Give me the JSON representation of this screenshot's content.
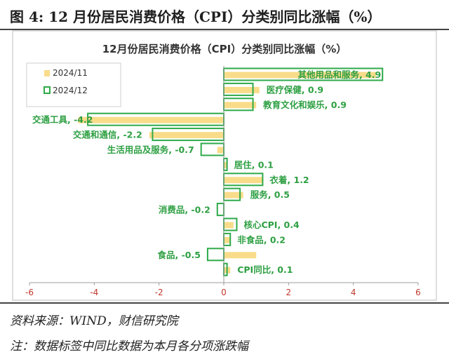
{
  "figure_title": "图 4: 12 月份居民消费价格（CPI）分类别同比涨幅（%）",
  "source_note": "资料来源：WIND，财信研究院",
  "label_note": "注：数据标签中同比数据为本月各分项涨跌幅",
  "colors": {
    "series_2024_11": "#f9dc8a",
    "series_2024_12": "#2eaa4a",
    "label_text": "#2ea043",
    "tick_text": "#c0392b"
  },
  "chart_data": {
    "type": "bar",
    "orientation": "horizontal",
    "title": "12月份居民消费价格（CPI）分类别同比涨幅（%）",
    "categories": [
      "其他用品和服务",
      "医疗保健",
      "教育文化和娱乐",
      "交通工具",
      "交通和通信",
      "生活用品及服务",
      "居住",
      "衣着",
      "服务",
      "消费品",
      "核心CPI",
      "非食品",
      "食品",
      "CPI同比"
    ],
    "labels": [
      "其他用品和服务, 4.9",
      "医疗保健, 0.9",
      "教育文化和娱乐, 0.9",
      "交通工具, -4.2",
      "交通和通信, -2.2",
      "生活用品及服务, -0.7",
      "居住, 0.1",
      "衣着, 1.2",
      "服务, 0.5",
      "消费品, -0.2",
      "核心CPI, 0.4",
      "非食品, 0.2",
      "食品, -0.5",
      "CPI同比, 0.1"
    ],
    "series": [
      {
        "name": "2024/11",
        "style": "filled",
        "values": [
          4.7,
          1.1,
          1.0,
          -4.5,
          -2.3,
          -0.2,
          0.1,
          1.2,
          0.6,
          0.0,
          0.3,
          0.2,
          1.0,
          0.2
        ]
      },
      {
        "name": "2024/12",
        "style": "outline",
        "values": [
          4.9,
          0.9,
          0.9,
          -4.2,
          -2.2,
          -0.7,
          0.1,
          1.2,
          0.5,
          -0.2,
          0.4,
          0.2,
          -0.5,
          0.1
        ]
      }
    ],
    "x_ticks": [
      -6,
      -4,
      -2,
      0,
      2,
      4,
      6
    ],
    "xlim": [
      -6,
      6
    ],
    "legend_position": "top-left",
    "grid": false
  }
}
